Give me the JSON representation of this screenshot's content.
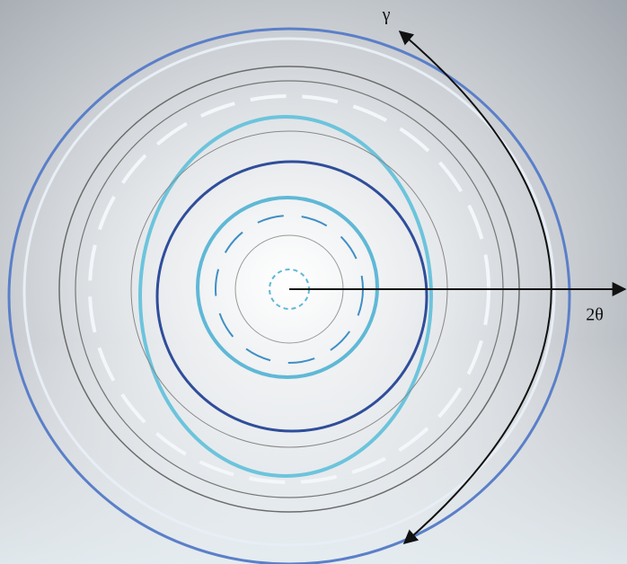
{
  "labels": {
    "gamma": "γ",
    "two_theta": "2θ"
  }
}
